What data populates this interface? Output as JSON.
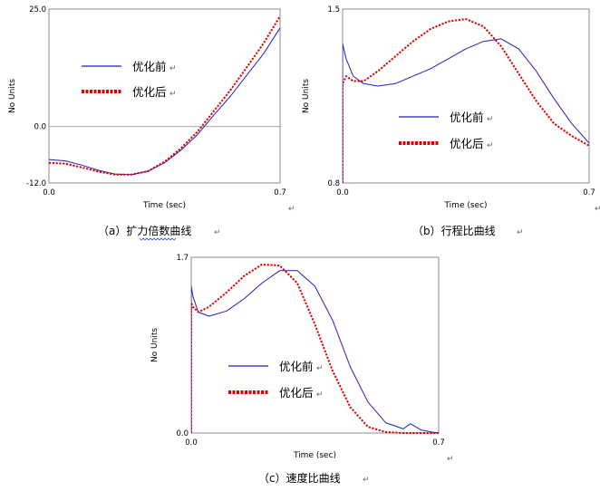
{
  "chart_data": [
    {
      "type": "line",
      "caption": "（a）扩力倍数曲线",
      "xlabel": "Time (sec)",
      "ylabel": "No Units",
      "xlim": [
        0.0,
        0.7
      ],
      "ylim": [
        -12.0,
        25.0
      ],
      "xticks": [
        "0.0",
        "0.7"
      ],
      "yticks": [
        "25.0",
        "0.0",
        "-12.0"
      ],
      "zero_line": true,
      "legend_position": "top-left",
      "series": [
        {
          "name": "优化前",
          "color": "#1f1fbf",
          "style": "solid",
          "x": [
            0.0,
            0.05,
            0.1,
            0.15,
            0.2,
            0.25,
            0.3,
            0.35,
            0.4,
            0.45,
            0.5,
            0.55,
            0.6,
            0.65,
            0.7
          ],
          "y": [
            -7.0,
            -7.3,
            -8.2,
            -9.3,
            -10.1,
            -10.2,
            -9.5,
            -7.7,
            -5.0,
            -1.7,
            2.5,
            6.5,
            11.0,
            15.5,
            21.0
          ]
        },
        {
          "name": "优化后",
          "color": "#e00000",
          "style": "dotted",
          "x": [
            0.0,
            0.05,
            0.1,
            0.15,
            0.2,
            0.25,
            0.3,
            0.35,
            0.4,
            0.45,
            0.5,
            0.55,
            0.6,
            0.65,
            0.7
          ],
          "y": [
            -7.7,
            -7.9,
            -8.7,
            -9.6,
            -10.2,
            -10.2,
            -9.5,
            -7.5,
            -4.6,
            -1.1,
            3.3,
            7.8,
            12.7,
            17.7,
            23.5
          ]
        }
      ]
    },
    {
      "type": "line",
      "caption": "（b）行程比曲线",
      "xlabel": "Time (sec)",
      "ylabel": "No Units",
      "xlim": [
        0.0,
        0.7
      ],
      "ylim": [
        0.8,
        1.5
      ],
      "xticks": [
        "0.0",
        "0.7"
      ],
      "yticks": [
        "1.5",
        "0.8"
      ],
      "legend_position": "center",
      "series": [
        {
          "name": "优化前",
          "color": "#1f1fbf",
          "style": "solid",
          "x": [
            0.0,
            0.0,
            0.01,
            0.03,
            0.06,
            0.1,
            0.15,
            0.2,
            0.25,
            0.3,
            0.35,
            0.4,
            0.45,
            0.5,
            0.55,
            0.6,
            0.65,
            0.7
          ],
          "y": [
            0.8,
            1.36,
            1.3,
            1.23,
            1.2,
            1.19,
            1.2,
            1.23,
            1.26,
            1.3,
            1.34,
            1.37,
            1.38,
            1.34,
            1.25,
            1.14,
            1.04,
            0.96
          ]
        },
        {
          "name": "优化后",
          "color": "#e00000",
          "style": "dotted",
          "x": [
            0.0,
            0.0,
            0.01,
            0.03,
            0.06,
            0.1,
            0.15,
            0.2,
            0.25,
            0.3,
            0.35,
            0.4,
            0.45,
            0.5,
            0.55,
            0.6,
            0.65,
            0.7
          ],
          "y": [
            0.8,
            1.2,
            1.23,
            1.21,
            1.21,
            1.25,
            1.31,
            1.37,
            1.42,
            1.45,
            1.46,
            1.43,
            1.35,
            1.24,
            1.13,
            1.04,
            0.99,
            0.95
          ]
        }
      ]
    },
    {
      "type": "line",
      "caption": "（c）速度比曲线",
      "xlabel": "Time (sec)",
      "ylabel": "No Units",
      "xlim": [
        0.0,
        0.7
      ],
      "ylim": [
        0.0,
        1.7
      ],
      "xticks": [
        "0.0",
        "0.7"
      ],
      "yticks": [
        "1.7",
        "0.0"
      ],
      "legend_position": "center-left",
      "series": [
        {
          "name": "优化前",
          "color": "#1f1fbf",
          "style": "solid",
          "x": [
            0.0,
            0.0,
            0.005,
            0.02,
            0.05,
            0.1,
            0.15,
            0.2,
            0.25,
            0.3,
            0.35,
            0.4,
            0.45,
            0.5,
            0.55,
            0.6,
            0.62,
            0.65,
            0.68,
            0.7
          ],
          "y": [
            0.0,
            1.42,
            1.32,
            1.17,
            1.13,
            1.18,
            1.3,
            1.45,
            1.57,
            1.57,
            1.42,
            1.09,
            0.64,
            0.3,
            0.1,
            0.04,
            0.09,
            0.03,
            0.01,
            0.0
          ]
        },
        {
          "name": "优化后",
          "color": "#e00000",
          "style": "dotted",
          "x": [
            0.0,
            0.0,
            0.005,
            0.02,
            0.05,
            0.1,
            0.15,
            0.2,
            0.25,
            0.3,
            0.35,
            0.4,
            0.45,
            0.5,
            0.55,
            0.6,
            0.65,
            0.7
          ],
          "y": [
            0.0,
            1.26,
            1.22,
            1.17,
            1.22,
            1.36,
            1.52,
            1.63,
            1.62,
            1.45,
            1.05,
            0.6,
            0.25,
            0.06,
            0.01,
            0.0,
            0.0,
            0.0
          ]
        }
      ]
    }
  ]
}
